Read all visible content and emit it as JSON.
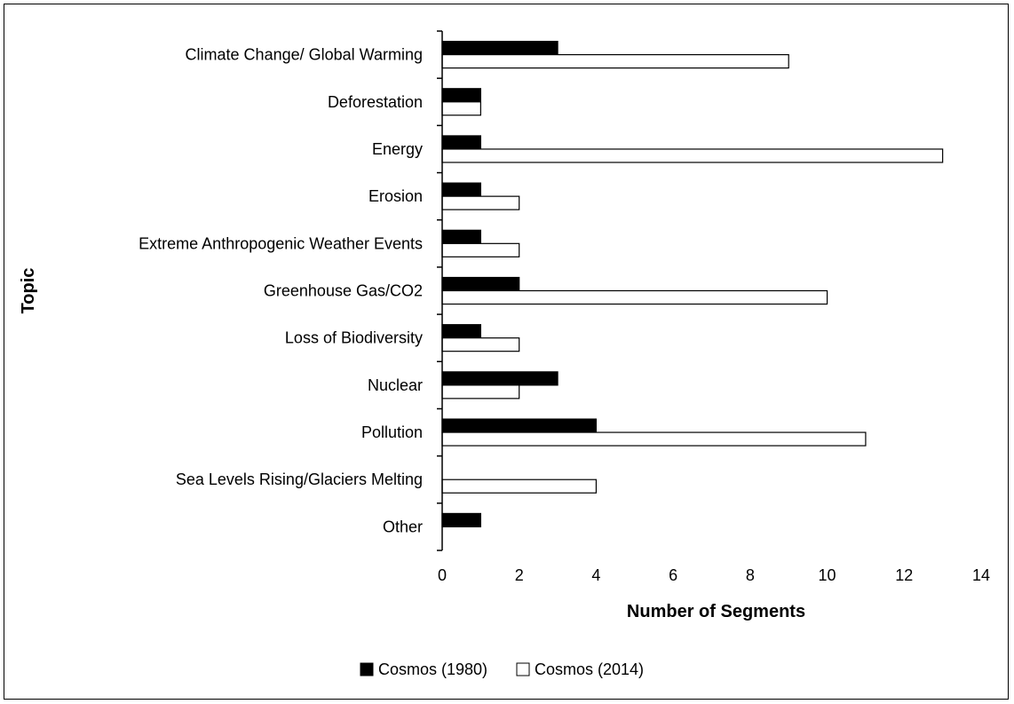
{
  "chart_data": {
    "type": "bar",
    "orientation": "horizontal",
    "categories": [
      "Climate Change/ Global Warming",
      "Deforestation",
      "Energy",
      "Erosion",
      "Extreme Anthropogenic Weather Events",
      "Greenhouse Gas/CO2",
      "Loss of Biodiversity",
      "Nuclear",
      "Pollution",
      "Sea Levels Rising/Glaciers Melting",
      "Other"
    ],
    "series": [
      {
        "name": "Cosmos (1980)",
        "color": "#000000",
        "values": [
          3,
          1,
          1,
          1,
          1,
          2,
          1,
          3,
          4,
          0,
          1
        ]
      },
      {
        "name": "Cosmos (2014)",
        "color": "#ffffff",
        "values": [
          9,
          1,
          13,
          2,
          2,
          10,
          2,
          2,
          11,
          4,
          0
        ]
      }
    ],
    "xlabel": "Number of Segments",
    "ylabel": "Topic",
    "xlim": [
      0,
      14
    ],
    "xticks": [
      0,
      2,
      4,
      6,
      8,
      10,
      12,
      14
    ],
    "grid": false,
    "legend_position": "bottom"
  }
}
